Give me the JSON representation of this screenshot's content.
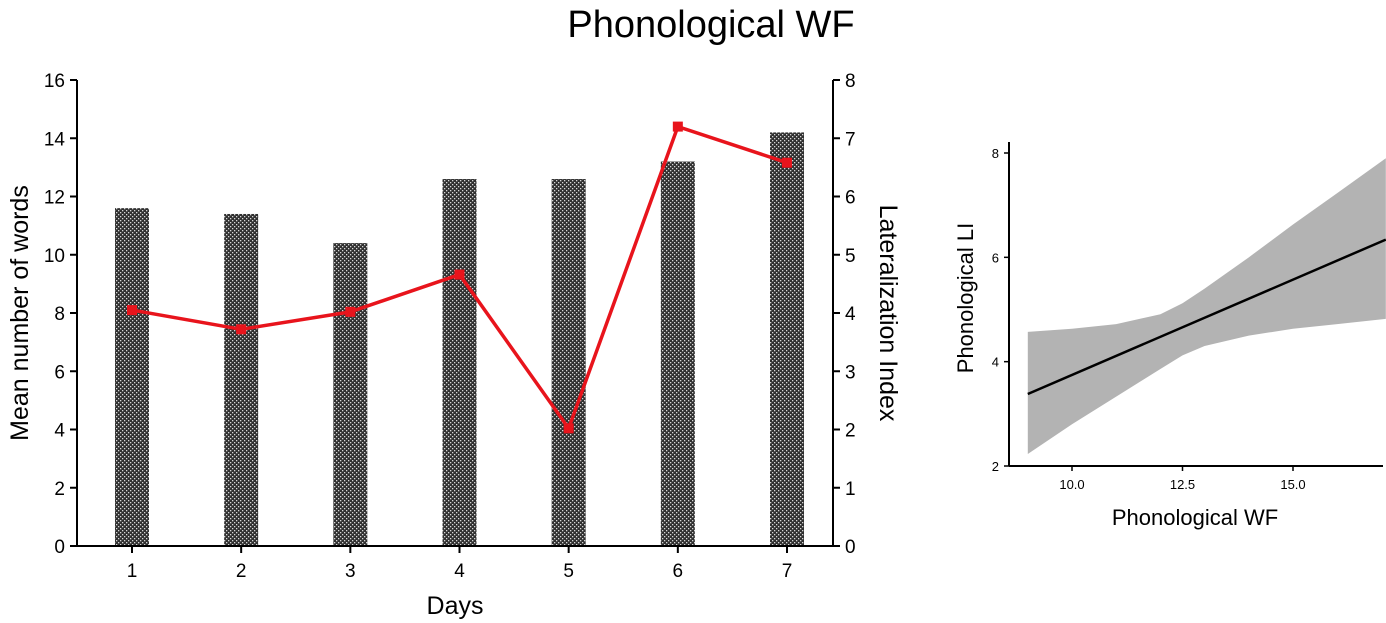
{
  "page": {
    "title": "Phonological WF"
  },
  "chart_data": [
    {
      "type": "bar",
      "title": "Phonological WF",
      "xlabel": "Days",
      "ylabel": "Mean number of words",
      "ylabel_right": "Lateralization Index",
      "categories": [
        "1",
        "2",
        "3",
        "4",
        "5",
        "6",
        "7"
      ],
      "ylim": [
        0,
        16
      ],
      "yticks": [
        "0",
        "2",
        "4",
        "6",
        "8",
        "10",
        "12",
        "14",
        "16"
      ],
      "ylim_right": [
        0,
        8
      ],
      "yticks_right": [
        "0",
        "1",
        "2",
        "3",
        "4",
        "5",
        "6",
        "7",
        "8"
      ],
      "series": [
        {
          "axis": "left",
          "kind": "bar",
          "values": [
            11.6,
            11.4,
            10.4,
            12.6,
            12.6,
            13.2,
            14.2
          ],
          "color": "#3a3a3a"
        },
        {
          "axis": "right",
          "kind": "line",
          "values": [
            4.05,
            3.72,
            4.02,
            4.66,
            2.02,
            7.2,
            6.58
          ],
          "color": "#e8141c"
        }
      ],
      "grid": false,
      "legend": "none"
    },
    {
      "type": "line",
      "xlabel": "Phonological WF",
      "ylabel": "Phonological LI",
      "xlim": [
        8.9,
        17.1
      ],
      "ylim": [
        2,
        8.2
      ],
      "xticks": [
        "10.0",
        "12.5",
        "15.0"
      ],
      "yticks": [
        "2",
        "4",
        "6",
        "8"
      ],
      "fit_line": {
        "x": [
          9.0,
          17.1
        ],
        "y": [
          3.38,
          6.34
        ],
        "color": "#000000"
      },
      "confidence_band": {
        "x": [
          9.0,
          10.0,
          11.0,
          12.0,
          12.5,
          13.0,
          14.0,
          15.0,
          16.0,
          17.1
        ],
        "upper": [
          4.57,
          4.63,
          4.72,
          4.91,
          5.12,
          5.4,
          6.0,
          6.63,
          7.23,
          7.9
        ],
        "lower": [
          2.23,
          2.8,
          3.33,
          3.86,
          4.12,
          4.3,
          4.5,
          4.63,
          4.72,
          4.82
        ],
        "color": "#b3b3b3"
      },
      "grid": false,
      "legend": "none"
    }
  ]
}
